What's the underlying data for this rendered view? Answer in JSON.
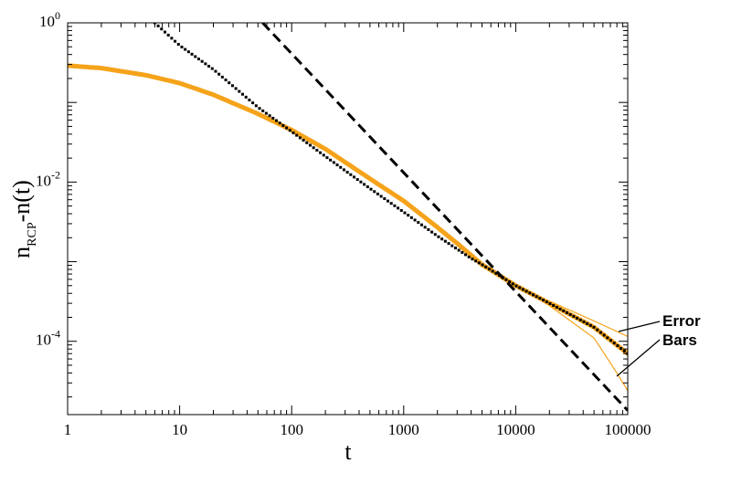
{
  "chart_data": {
    "type": "line",
    "title": "",
    "xlabel": "t",
    "ylabel": "n",
    "ylabel_subscript": "RCP",
    "ylabel_suffix": "-n(t)",
    "xscale": "log",
    "yscale": "log",
    "xlim": [
      1,
      100000
    ],
    "ylim": [
      1.2e-05,
      1
    ],
    "x_ticks": [
      {
        "value": 1,
        "label": "1"
      },
      {
        "value": 10,
        "label": "10"
      },
      {
        "value": 100,
        "label": "100"
      },
      {
        "value": 1000,
        "label": "1000"
      },
      {
        "value": 10000,
        "label": "10000"
      },
      {
        "value": 100000,
        "label": "100000"
      }
    ],
    "y_ticks": [
      {
        "value": 1,
        "base": "10",
        "exp": "0"
      },
      {
        "value": 0.01,
        "base": "10",
        "exp": "-2"
      },
      {
        "value": 0.0001,
        "base": "10",
        "exp": "-4"
      }
    ],
    "grid": false,
    "legend": "none",
    "series": [
      {
        "style": "thick-line",
        "color": "#f5a31a",
        "points": [
          [
            1,
            0.29
          ],
          [
            2,
            0.27
          ],
          [
            5,
            0.22
          ],
          [
            10,
            0.175
          ],
          [
            20,
            0.125
          ],
          [
            50,
            0.072
          ],
          [
            100,
            0.045
          ],
          [
            200,
            0.026
          ],
          [
            500,
            0.011
          ],
          [
            1000,
            0.0058
          ],
          [
            2000,
            0.0027
          ],
          [
            3000,
            0.0017
          ],
          [
            5000,
            0.00092
          ],
          [
            10000,
            0.0005
          ],
          [
            20000,
            0.0003
          ],
          [
            50000,
            0.00015
          ],
          [
            100000,
            7e-05
          ]
        ]
      },
      {
        "style": "thin-line",
        "color": "#f5a31a",
        "points": [
          [
            5000,
            0.00092
          ],
          [
            10000,
            0.0005
          ],
          [
            20000,
            0.00032
          ],
          [
            50000,
            0.00018
          ],
          [
            100000,
            0.000115
          ]
        ]
      },
      {
        "style": "thin-line",
        "color": "#f5a31a",
        "points": [
          [
            5000,
            0.00092
          ],
          [
            10000,
            0.0005
          ],
          [
            20000,
            0.00028
          ],
          [
            50000,
            0.00011
          ],
          [
            80000,
            4e-05
          ],
          [
            100000,
            2.4e-05
          ]
        ]
      },
      {
        "style": "dotted",
        "color": "#000000",
        "points": [
          [
            6,
            1
          ],
          [
            10,
            0.52
          ],
          [
            20,
            0.26
          ],
          [
            50,
            0.087
          ],
          [
            100,
            0.043
          ],
          [
            200,
            0.021
          ],
          [
            500,
            0.0083
          ],
          [
            1000,
            0.0042
          ],
          [
            2000,
            0.0021
          ],
          [
            4000,
            0.0011
          ],
          [
            5000,
            0.00092
          ],
          [
            10000,
            0.0005
          ],
          [
            20000,
            0.0003
          ],
          [
            50000,
            0.00015
          ],
          [
            100000,
            7e-05
          ]
        ]
      },
      {
        "style": "dashed",
        "color": "#000000",
        "points": [
          [
            55,
            1
          ],
          [
            100000,
            1.35e-05
          ]
        ]
      }
    ],
    "annotations": [
      {
        "lines": [
          "Error",
          "Bars"
        ],
        "position": "right",
        "points_to": [
          "upper-error-bar",
          "lower-error-bar"
        ]
      }
    ]
  }
}
